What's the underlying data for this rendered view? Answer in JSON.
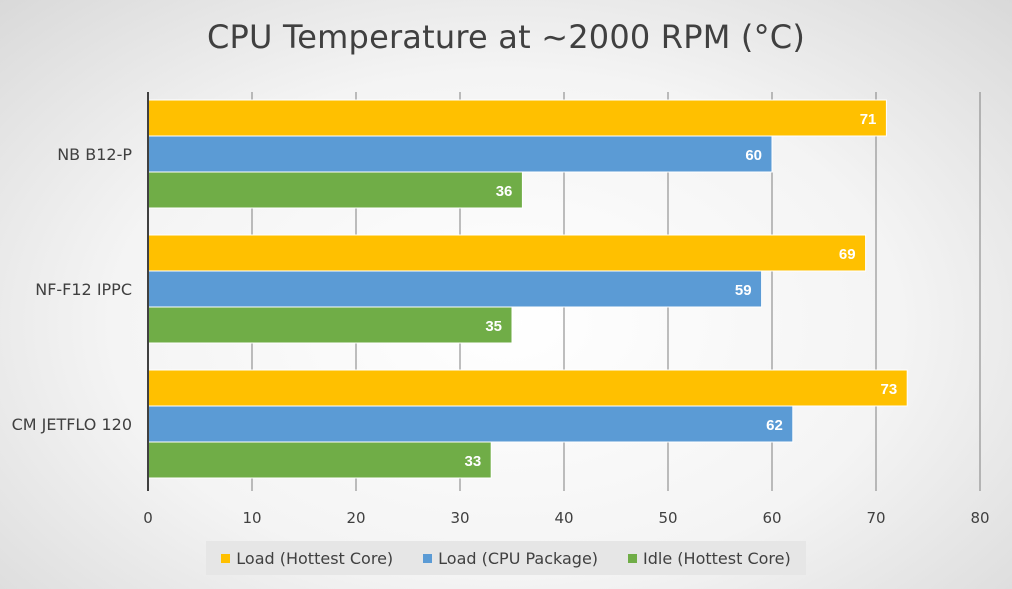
{
  "chart_data": {
    "type": "bar",
    "orientation": "horizontal",
    "title": "CPU Temperature at ~2000 RPM (°C)",
    "categories": [
      "NB B12-P",
      "NF-F12 IPPC",
      "CM JETFLO 120"
    ],
    "series": [
      {
        "name": "Load (Hottest Core)",
        "color": "#ffc000",
        "values": [
          71,
          69,
          73
        ]
      },
      {
        "name": "Load (CPU Package)",
        "color": "#5b9bd5",
        "values": [
          60,
          59,
          62
        ]
      },
      {
        "name": "Idle (Hottest Core)",
        "color": "#70ad47",
        "values": [
          36,
          35,
          33
        ]
      }
    ],
    "xlim": [
      0,
      80
    ],
    "x_ticks": [
      "0",
      "10",
      "20",
      "30",
      "40",
      "50",
      "60",
      "70",
      "80"
    ],
    "grid": "vertical",
    "legend": "bottom"
  }
}
